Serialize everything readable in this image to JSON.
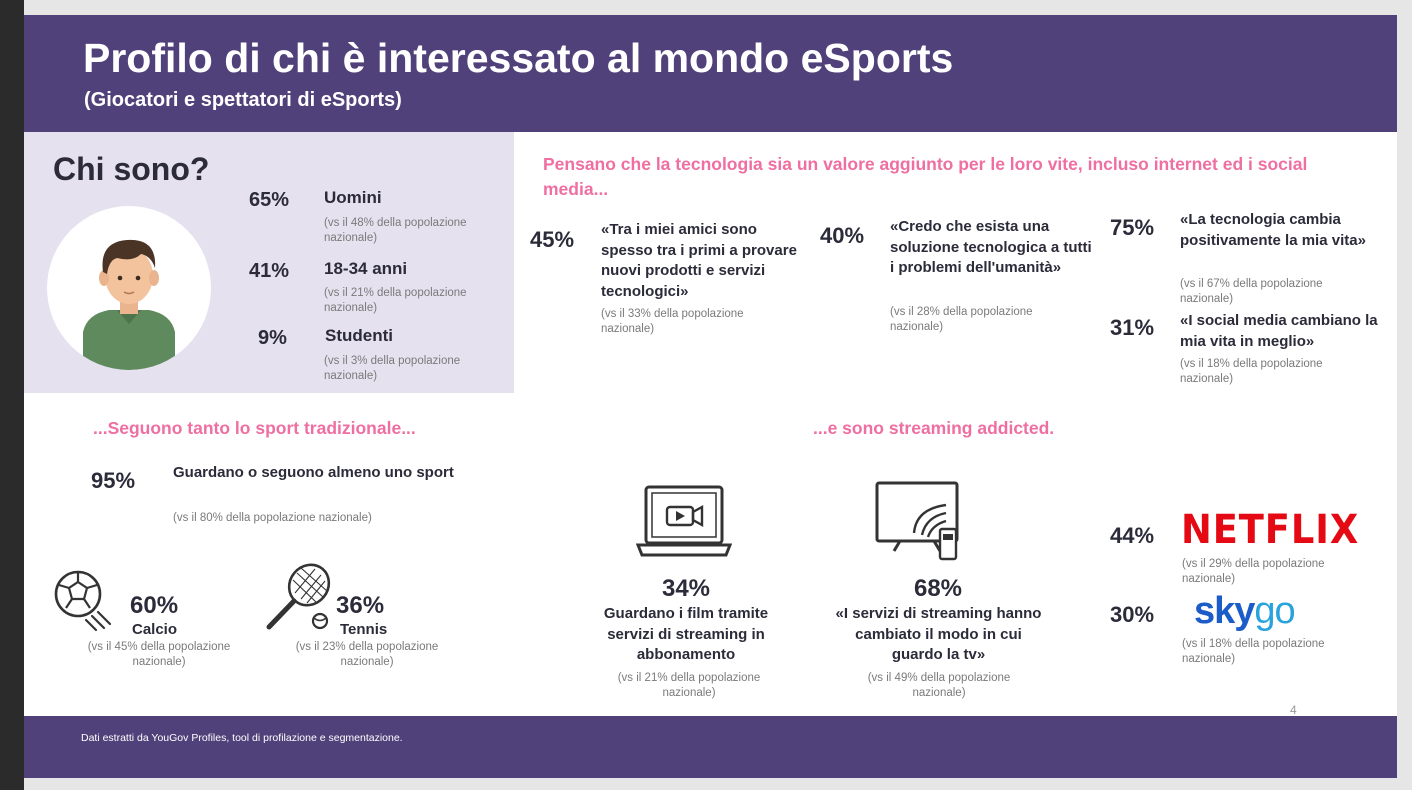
{
  "header": {
    "title": "Profilo di chi è interessato al mondo eSports",
    "subtitle": "(Giocatori e spettatori di eSports)"
  },
  "who": {
    "heading": "Chi sono?",
    "stats": [
      {
        "pct": "65%",
        "label": "Uomini",
        "note": "(vs il 48% della popolazione nazionale)"
      },
      {
        "pct": "41%",
        "label": "18-34 anni",
        "note": "(vs il 21% della popolazione nazionale)"
      },
      {
        "pct": "9%",
        "label": "Studenti",
        "note": "(vs il 3% della popolazione nazionale)"
      }
    ]
  },
  "tech": {
    "heading": "Pensano che la tecnologia sia un valore aggiunto per le loro vite, incluso internet ed i social media...",
    "items": [
      {
        "pct": "45%",
        "quote": "«Tra i miei amici sono spesso tra i primi a provare nuovi prodotti e servizi tecnologici»",
        "note": "(vs il 33% della popolazione nazionale)"
      },
      {
        "pct": "40%",
        "quote": "«Credo che esista una soluzione tecnologica a tutti i problemi dell'umanità»",
        "note": "(vs il 28% della popolazione nazionale)"
      },
      {
        "pct": "75%",
        "quote": "«La tecnologia cambia positivamente la mia vita»",
        "note": "(vs il 67% della popolazione nazionale)"
      },
      {
        "pct": "31%",
        "quote": "«I social media cambiano la mia vita in meglio»",
        "note": "(vs il 18% della popolazione nazionale)"
      }
    ]
  },
  "sport": {
    "heading": "...Seguono tanto lo sport tradizionale...",
    "main": {
      "pct": "95%",
      "label": "Guardano o seguono almeno uno sport",
      "note": "(vs il 80% della popolazione nazionale)"
    },
    "items": [
      {
        "pct": "60%",
        "label": "Calcio",
        "note": "(vs il 45% della popolazione nazionale)",
        "icon": "soccer-ball-icon"
      },
      {
        "pct": "36%",
        "label": "Tennis",
        "note": "(vs il 23% della popolazione nazionale)",
        "icon": "tennis-racket-icon"
      }
    ]
  },
  "streaming": {
    "heading": "...e sono streaming addicted.",
    "items": [
      {
        "pct": "34%",
        "label": "Guardano i film tramite servizi di streaming in abbonamento",
        "note": "(vs il 21% della popolazione nazionale)",
        "icon": "laptop-video-icon"
      },
      {
        "pct": "68%",
        "label": "«I servizi di streaming hanno cambiato il modo in cui guardo la tv»",
        "note": "(vs il 49% della popolazione nazionale)",
        "icon": "tv-streaming-icon"
      }
    ],
    "brands": [
      {
        "pct": "44%",
        "logo": "NETFLIX",
        "note": "(vs il 29% della popolazione nazionale)"
      },
      {
        "pct": "30%",
        "logo_a": "sky",
        "logo_b": "go",
        "note": "(vs il 18% della popolazione nazionale)"
      }
    ]
  },
  "footer": {
    "text": "Dati estratti da YouGov Profiles, tool di profilazione e segmentazione.",
    "page": "4"
  },
  "colors": {
    "header_bg": "#51417a",
    "panel_bg": "#e6e1ef",
    "accent_pink": "#ee6fa0",
    "netflix_red": "#e50914",
    "sky_blue": "#1b5cc9"
  }
}
